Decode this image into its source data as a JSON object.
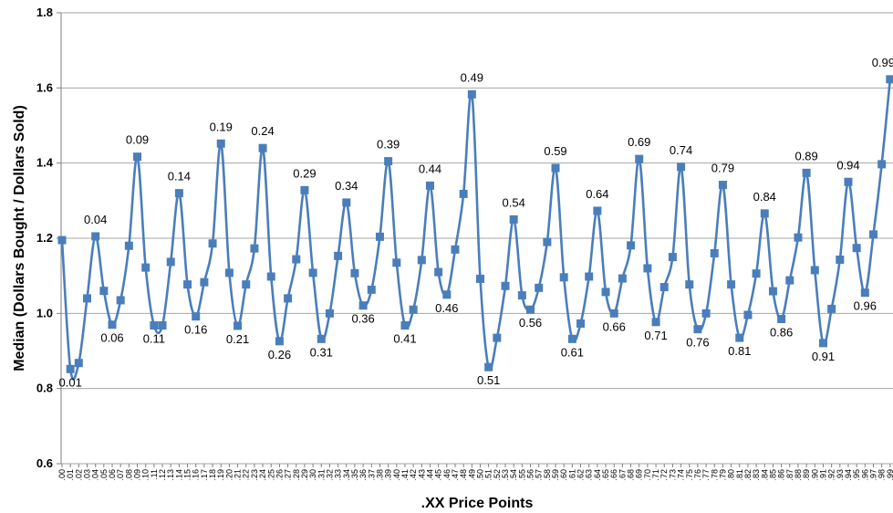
{
  "chart_data": {
    "type": "line",
    "title": "",
    "xlabel": ".XX Price Points",
    "ylabel": "Median (Dollars Bought / Dollars Sold)",
    "ylim": [
      0.6,
      1.8
    ],
    "yticks": [
      "0.6",
      "0.8",
      "1.0",
      "1.2",
      "1.4",
      "1.6",
      "1.8"
    ],
    "grid": "horizontal",
    "legend": "none",
    "line_color": "#4a7ebb",
    "marker": "square",
    "smooth": true,
    "categories": [
      ".00",
      ".01",
      ".02",
      ".03",
      ".04",
      ".05",
      ".06",
      ".07",
      ".08",
      ".09",
      ".10",
      ".11",
      ".12",
      ".13",
      ".14",
      ".15",
      ".16",
      ".17",
      ".18",
      ".19",
      ".20",
      ".21",
      ".22",
      ".23",
      ".24",
      ".25",
      ".26",
      ".27",
      ".28",
      ".29",
      ".30",
      ".31",
      ".32",
      ".33",
      ".34",
      ".35",
      ".36",
      ".37",
      ".38",
      ".39",
      ".40",
      ".41",
      ".42",
      ".43",
      ".44",
      ".45",
      ".46",
      ".47",
      ".48",
      ".49",
      ".50",
      ".51",
      ".52",
      ".53",
      ".54",
      ".55",
      ".56",
      ".57",
      ".58",
      ".59",
      ".60",
      ".61",
      ".62",
      ".63",
      ".64",
      ".65",
      ".66",
      ".67",
      ".68",
      ".69",
      ".70",
      ".71",
      ".72",
      ".73",
      ".74",
      ".75",
      ".76",
      ".77",
      ".78",
      ".79",
      ".80",
      ".81",
      ".82",
      ".83",
      ".84",
      ".85",
      ".86",
      ".87",
      ".88",
      ".89",
      ".90",
      ".91",
      ".92",
      ".93",
      ".94",
      ".95",
      ".96",
      ".97",
      ".98",
      ".99"
    ],
    "values": [
      1.195,
      0.852,
      0.868,
      1.04,
      1.205,
      1.06,
      0.97,
      1.035,
      1.18,
      1.417,
      1.122,
      0.968,
      0.968,
      1.137,
      1.32,
      1.077,
      0.992,
      1.083,
      1.186,
      1.452,
      1.108,
      0.967,
      1.077,
      1.173,
      1.44,
      1.098,
      0.926,
      1.04,
      1.144,
      1.328,
      1.108,
      0.932,
      1.0,
      1.153,
      1.295,
      1.107,
      1.021,
      1.063,
      1.204,
      1.405,
      1.135,
      0.968,
      1.01,
      1.142,
      1.34,
      1.11,
      1.05,
      1.17,
      1.318,
      1.583,
      1.092,
      0.857,
      0.935,
      1.073,
      1.25,
      1.048,
      1.01,
      1.068,
      1.19,
      1.387,
      1.096,
      0.932,
      0.973,
      1.098,
      1.273,
      1.057,
      1.0,
      1.093,
      1.181,
      1.411,
      1.12,
      0.977,
      1.07,
      1.15,
      1.39,
      1.077,
      0.958,
      1.0,
      1.16,
      1.342,
      1.077,
      0.935,
      0.996,
      1.106,
      1.266,
      1.059,
      0.985,
      1.088,
      1.202,
      1.374,
      1.115,
      0.921,
      1.012,
      1.143,
      1.35,
      1.174,
      1.055,
      1.21,
      1.397,
      1.623
    ],
    "data_labels": [
      {
        "index": 1,
        "text": "0.01",
        "pos": "below"
      },
      {
        "index": 4,
        "text": "0.04",
        "pos": "above"
      },
      {
        "index": 6,
        "text": "0.06",
        "pos": "below"
      },
      {
        "index": 9,
        "text": "0.09",
        "pos": "above"
      },
      {
        "index": 11,
        "text": "0.11",
        "pos": "below"
      },
      {
        "index": 14,
        "text": "0.14",
        "pos": "above"
      },
      {
        "index": 16,
        "text": "0.16",
        "pos": "below"
      },
      {
        "index": 19,
        "text": "0.19",
        "pos": "above"
      },
      {
        "index": 21,
        "text": "0.21",
        "pos": "below"
      },
      {
        "index": 24,
        "text": "0.24",
        "pos": "above"
      },
      {
        "index": 26,
        "text": "0.26",
        "pos": "below"
      },
      {
        "index": 29,
        "text": "0.29",
        "pos": "above"
      },
      {
        "index": 31,
        "text": "0.31",
        "pos": "below"
      },
      {
        "index": 34,
        "text": "0.34",
        "pos": "above"
      },
      {
        "index": 36,
        "text": "0.36",
        "pos": "below"
      },
      {
        "index": 39,
        "text": "0.39",
        "pos": "above"
      },
      {
        "index": 41,
        "text": "0.41",
        "pos": "below"
      },
      {
        "index": 44,
        "text": "0.44",
        "pos": "above"
      },
      {
        "index": 46,
        "text": "0.46",
        "pos": "below"
      },
      {
        "index": 49,
        "text": "0.49",
        "pos": "above"
      },
      {
        "index": 51,
        "text": "0.51",
        "pos": "below"
      },
      {
        "index": 54,
        "text": "0.54",
        "pos": "above"
      },
      {
        "index": 56,
        "text": "0.56",
        "pos": "below"
      },
      {
        "index": 59,
        "text": "0.59",
        "pos": "above"
      },
      {
        "index": 61,
        "text": "0.61",
        "pos": "below"
      },
      {
        "index": 64,
        "text": "0.64",
        "pos": "above"
      },
      {
        "index": 66,
        "text": "0.66",
        "pos": "below"
      },
      {
        "index": 69,
        "text": "0.69",
        "pos": "above"
      },
      {
        "index": 71,
        "text": "0.71",
        "pos": "below"
      },
      {
        "index": 74,
        "text": "0.74",
        "pos": "above"
      },
      {
        "index": 76,
        "text": "0.76",
        "pos": "below"
      },
      {
        "index": 79,
        "text": "0.79",
        "pos": "above"
      },
      {
        "index": 81,
        "text": "0.81",
        "pos": "below"
      },
      {
        "index": 84,
        "text": "0.84",
        "pos": "above"
      },
      {
        "index": 86,
        "text": "0.86",
        "pos": "below"
      },
      {
        "index": 89,
        "text": "0.89",
        "pos": "above"
      },
      {
        "index": 91,
        "text": "0.91",
        "pos": "below"
      },
      {
        "index": 94,
        "text": "0.94",
        "pos": "above"
      },
      {
        "index": 96,
        "text": "0.96",
        "pos": "below"
      },
      {
        "index": 99,
        "text": "0.99",
        "pos": "above"
      }
    ]
  }
}
